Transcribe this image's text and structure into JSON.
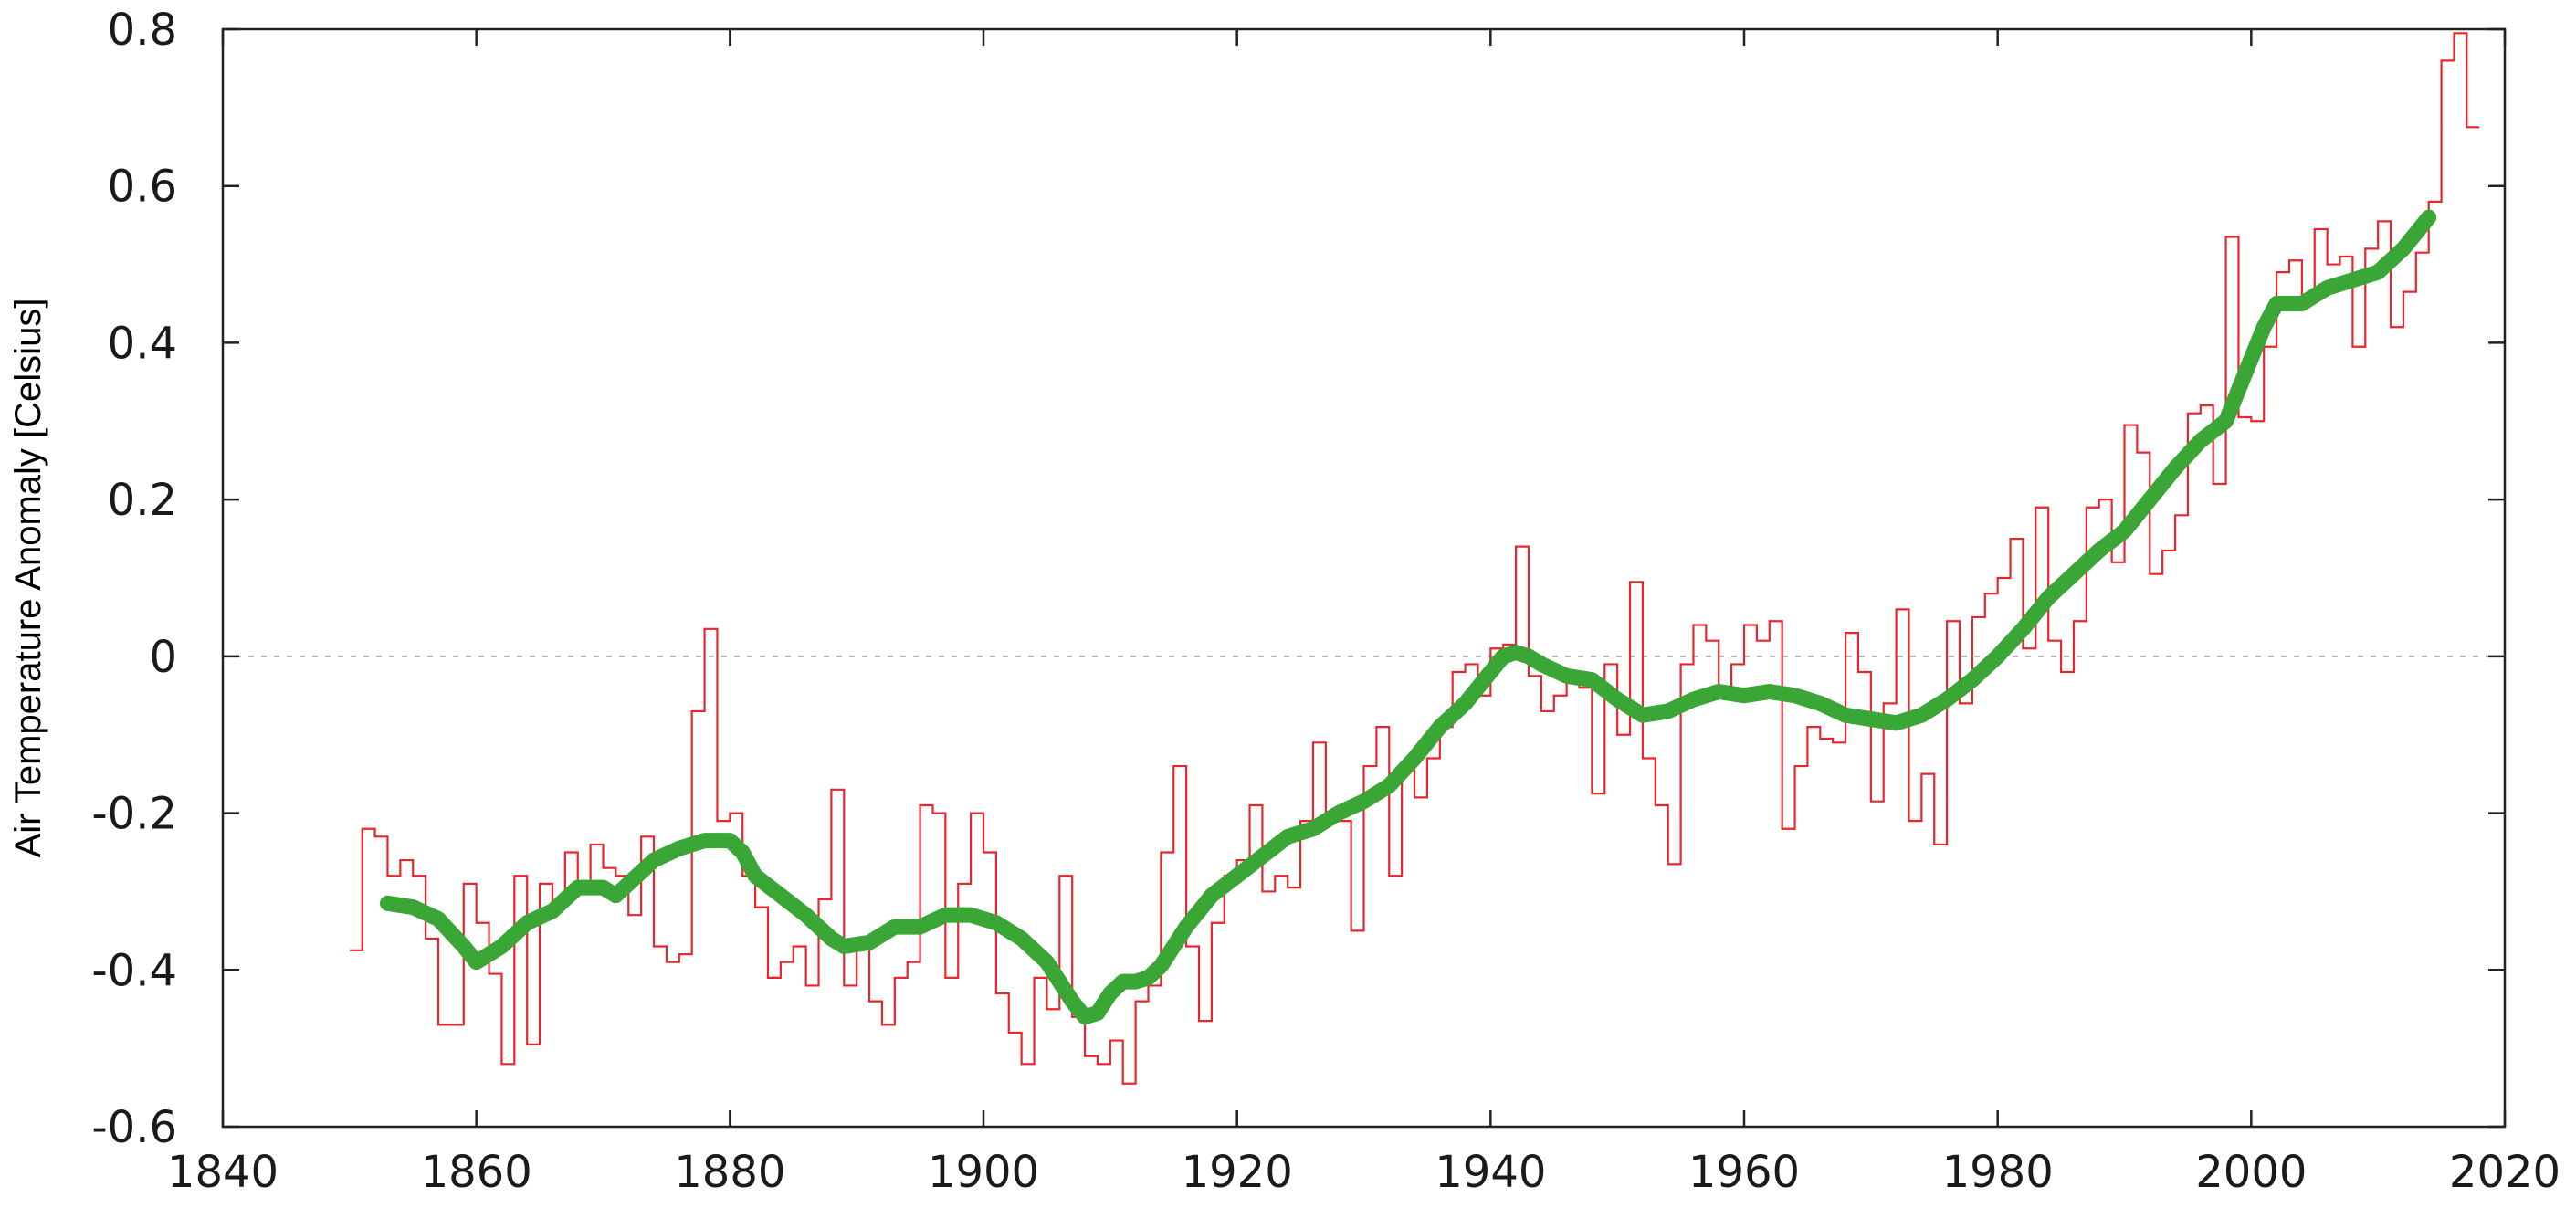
{
  "chart_data": {
    "type": "line",
    "title": "",
    "xlabel": "",
    "ylabel": "Air Temperature Anomaly [Celsius]",
    "xlim": [
      1840,
      2020
    ],
    "ylim": [
      -0.6,
      0.8
    ],
    "x_ticks": [
      "1840",
      "1860",
      "1880",
      "1900",
      "1920",
      "1940",
      "1960",
      "1980",
      "2000",
      "2020"
    ],
    "y_ticks": [
      "-0.6",
      "-0.4",
      "-0.2",
      "0",
      "0.2",
      "0.4",
      "0.6",
      "0.8"
    ],
    "grid": false,
    "zero_reference_line": true,
    "legend": "none",
    "series": [
      {
        "style": "step",
        "color": "#e8262e",
        "x": [
          1850,
          1851,
          1852,
          1853,
          1854,
          1855,
          1856,
          1857,
          1858,
          1859,
          1860,
          1861,
          1862,
          1863,
          1864,
          1865,
          1866,
          1867,
          1868,
          1869,
          1870,
          1871,
          1872,
          1873,
          1874,
          1875,
          1876,
          1877,
          1878,
          1879,
          1880,
          1881,
          1882,
          1883,
          1884,
          1885,
          1886,
          1887,
          1888,
          1889,
          1890,
          1891,
          1892,
          1893,
          1894,
          1895,
          1896,
          1897,
          1898,
          1899,
          1900,
          1901,
          1902,
          1903,
          1904,
          1905,
          1906,
          1907,
          1908,
          1909,
          1910,
          1911,
          1912,
          1913,
          1914,
          1915,
          1916,
          1917,
          1918,
          1919,
          1920,
          1921,
          1922,
          1923,
          1924,
          1925,
          1926,
          1927,
          1928,
          1929,
          1930,
          1931,
          1932,
          1933,
          1934,
          1935,
          1936,
          1937,
          1938,
          1939,
          1940,
          1941,
          1942,
          1943,
          1944,
          1945,
          1946,
          1947,
          1948,
          1949,
          1950,
          1951,
          1952,
          1953,
          1954,
          1955,
          1956,
          1957,
          1958,
          1959,
          1960,
          1961,
          1962,
          1963,
          1964,
          1965,
          1966,
          1967,
          1968,
          1969,
          1970,
          1971,
          1972,
          1973,
          1974,
          1975,
          1976,
          1977,
          1978,
          1979,
          1980,
          1981,
          1982,
          1983,
          1984,
          1985,
          1986,
          1987,
          1988,
          1989,
          1990,
          1991,
          1992,
          1993,
          1994,
          1995,
          1996,
          1997,
          1998,
          1999,
          2000,
          2001,
          2002,
          2003,
          2004,
          2005,
          2006,
          2007,
          2008,
          2009,
          2010,
          2011,
          2012,
          2013,
          2014,
          2015,
          2016,
          2017
        ],
        "values": [
          -0.375,
          -0.22,
          -0.23,
          -0.28,
          -0.26,
          -0.28,
          -0.36,
          -0.47,
          -0.47,
          -0.29,
          -0.34,
          -0.405,
          -0.52,
          -0.28,
          -0.495,
          -0.29,
          -0.32,
          -0.25,
          -0.3,
          -0.24,
          -0.27,
          -0.28,
          -0.33,
          -0.23,
          -0.37,
          -0.39,
          -0.38,
          -0.07,
          0.035,
          -0.21,
          -0.2,
          -0.28,
          -0.32,
          -0.41,
          -0.39,
          -0.37,
          -0.42,
          -0.31,
          -0.17,
          -0.42,
          -0.37,
          -0.44,
          -0.47,
          -0.41,
          -0.39,
          -0.19,
          -0.2,
          -0.41,
          -0.29,
          -0.2,
          -0.25,
          -0.43,
          -0.48,
          -0.52,
          -0.41,
          -0.45,
          -0.28,
          -0.46,
          -0.51,
          -0.52,
          -0.49,
          -0.545,
          -0.44,
          -0.42,
          -0.25,
          -0.14,
          -0.37,
          -0.465,
          -0.34,
          -0.28,
          -0.26,
          -0.19,
          -0.3,
          -0.28,
          -0.295,
          -0.21,
          -0.11,
          -0.2,
          -0.21,
          -0.35,
          -0.14,
          -0.09,
          -0.28,
          -0.14,
          -0.18,
          -0.13,
          -0.09,
          -0.02,
          -0.01,
          -0.05,
          0.01,
          0.015,
          0.14,
          -0.025,
          -0.07,
          -0.05,
          -0.02,
          -0.04,
          -0.175,
          -0.01,
          -0.1,
          0.095,
          -0.13,
          -0.19,
          -0.265,
          -0.01,
          0.04,
          0.02,
          -0.04,
          -0.01,
          0.04,
          0.02,
          0.045,
          -0.22,
          -0.14,
          -0.09,
          -0.105,
          -0.11,
          0.03,
          -0.02,
          -0.185,
          -0.06,
          0.06,
          -0.21,
          -0.15,
          -0.24,
          0.045,
          -0.06,
          0.05,
          0.08,
          0.1,
          0.15,
          0.01,
          0.19,
          0.02,
          -0.02,
          0.045,
          0.19,
          0.2,
          0.12,
          0.295,
          0.26,
          0.105,
          0.135,
          0.18,
          0.31,
          0.32,
          0.22,
          0.535,
          0.305,
          0.3,
          0.395,
          0.49,
          0.505,
          0.45,
          0.545,
          0.5,
          0.51,
          0.395,
          0.52,
          0.555,
          0.42,
          0.465,
          0.515,
          0.58,
          0.76,
          0.795,
          0.675
        ]
      },
      {
        "style": "smoothed",
        "color": "#3aa635",
        "x": [
          1853,
          1855,
          1857,
          1859,
          1860,
          1862,
          1864,
          1866,
          1867,
          1868,
          1870,
          1871,
          1872,
          1874,
          1876,
          1878,
          1880,
          1881,
          1882,
          1884,
          1886,
          1888,
          1889,
          1891,
          1893,
          1895,
          1897,
          1899,
          1901,
          1903,
          1905,
          1907,
          1908,
          1909,
          1910,
          1911,
          1912,
          1913,
          1914,
          1916,
          1918,
          1920,
          1922,
          1924,
          1926,
          1928,
          1930,
          1932,
          1934,
          1936,
          1938,
          1940,
          1941,
          1942,
          1943,
          1944,
          1946,
          1948,
          1950,
          1952,
          1954,
          1956,
          1958,
          1960,
          1962,
          1964,
          1966,
          1968,
          1970,
          1972,
          1974,
          1976,
          1978,
          1980,
          1982,
          1984,
          1986,
          1988,
          1990,
          1992,
          1994,
          1996,
          1998,
          2000,
          2001,
          2002,
          2004,
          2006,
          2008,
          2010,
          2012,
          2014
        ],
        "values": [
          -0.315,
          -0.32,
          -0.335,
          -0.37,
          -0.39,
          -0.37,
          -0.34,
          -0.325,
          -0.31,
          -0.295,
          -0.295,
          -0.305,
          -0.29,
          -0.26,
          -0.245,
          -0.235,
          -0.235,
          -0.25,
          -0.28,
          -0.305,
          -0.33,
          -0.36,
          -0.37,
          -0.365,
          -0.345,
          -0.345,
          -0.33,
          -0.33,
          -0.34,
          -0.36,
          -0.39,
          -0.44,
          -0.46,
          -0.455,
          -0.43,
          -0.415,
          -0.415,
          -0.41,
          -0.395,
          -0.345,
          -0.305,
          -0.28,
          -0.255,
          -0.23,
          -0.22,
          -0.2,
          -0.185,
          -0.165,
          -0.13,
          -0.09,
          -0.06,
          -0.02,
          0,
          0.005,
          0.0,
          -0.01,
          -0.025,
          -0.03,
          -0.055,
          -0.075,
          -0.07,
          -0.055,
          -0.045,
          -0.05,
          -0.045,
          -0.05,
          -0.06,
          -0.075,
          -0.08,
          -0.085,
          -0.075,
          -0.055,
          -0.03,
          0.0,
          0.035,
          0.075,
          0.105,
          0.135,
          0.16,
          0.2,
          0.24,
          0.275,
          0.3,
          0.38,
          0.42,
          0.45,
          0.45,
          0.47,
          0.48,
          0.49,
          0.52,
          0.56
        ]
      }
    ]
  }
}
